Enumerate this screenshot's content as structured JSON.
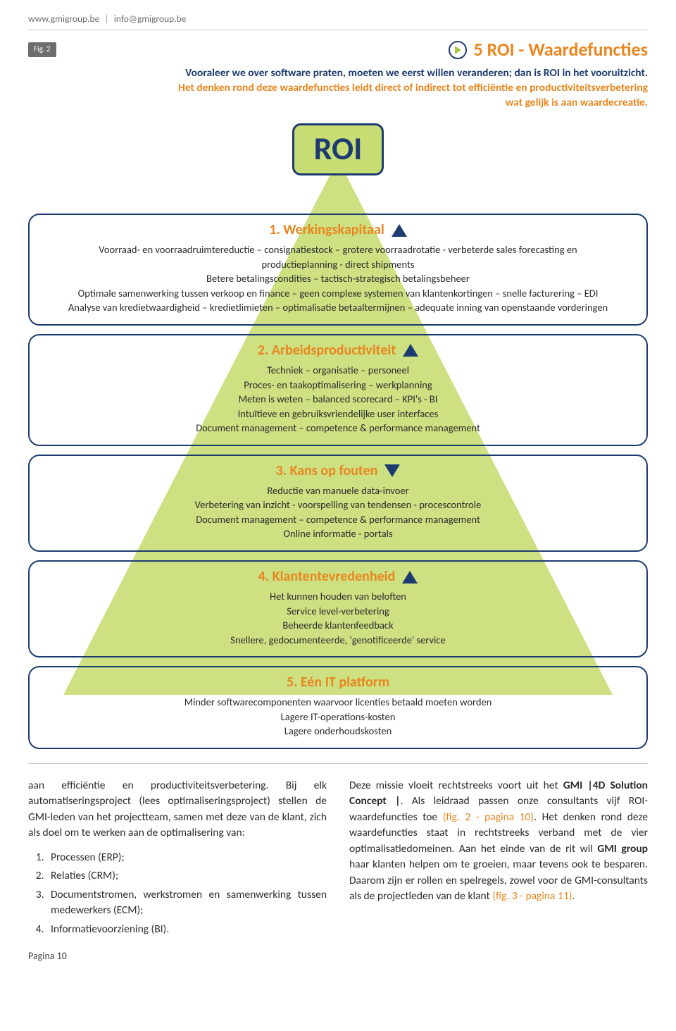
{
  "header": {
    "url": "www.gmigroup.be",
    "email": "info@gmigroup.be"
  },
  "fig_badge": "Fig. 2",
  "title": "5 ROI - Waardefuncties",
  "colors": {
    "orange": "#e8861f",
    "navy": "#1d3b70",
    "green_tri": "#c8dd74",
    "green_chev": "#a7c83f",
    "grey_text": "#6d6d6d"
  },
  "intro": {
    "line1": "Vooraleer we over software praten, moeten we eerst willen veranderen; dan is ROI in het vooruitzicht.",
    "line2": "Het denken rond deze waardefuncties leidt direct of indirect tot efficiëntie en productiviteitsverbetering",
    "line3": "wat gelijk is aan waardecreatie."
  },
  "roi_label": "ROI",
  "sections": [
    {
      "title": "1. Werkingskapitaal",
      "arrow": "up",
      "lines": [
        "Voorraad- en voorraadruimtereductie – consignatiestock – grotere voorraadrotatie -  verbeterde sales forecasting en",
        "productieplanning - direct shipments",
        "Betere betalingscondities – tactisch-strategisch betalingsbeheer",
        "Optimale samenwerking tussen verkoop en finance – geen complexe systemen van klantenkortingen – snelle facturering – EDI",
        "Analyse van kredietwaardigheid – kredietlimieten – optimalisatie betaaltermijnen – adequate inning van openstaande vorderingen"
      ]
    },
    {
      "title": "2. Arbeidsproductiviteit",
      "arrow": "up",
      "lines": [
        "Techniek – organisatie – personeel",
        "Proces- en taakoptimalisering – werkplanning",
        "Meten is weten – balanced scorecard – KPI's - BI",
        "Intuïtieve en gebruiksvriendelijke user interfaces",
        "Document management – competence & performance management"
      ]
    },
    {
      "title": "3. Kans op fouten",
      "arrow": "down",
      "lines": [
        "Reductie van manuele data-invoer",
        "Verbetering van inzicht - voorspelling van tendensen - procescontrole",
        "Document management – competence & performance management",
        "Online informatie - portals"
      ]
    },
    {
      "title": "4. Klantentevredenheid",
      "arrow": "up",
      "lines": [
        "Het kunnen houden van beloften",
        "Service level-verbetering",
        "Beheerde klantenfeedback",
        "Snellere, gedocumenteerde, 'genotificeerde' service"
      ]
    },
    {
      "title": "5. Eén IT platform",
      "arrow": "none",
      "lines": [
        "Minder softwarecomponenten waarvoor licenties betaald moeten worden",
        "Lagere IT-operations-kosten",
        "Lagere onderhoudskosten"
      ]
    }
  ],
  "left_col": {
    "para": "aan efficiëntie en productiviteitsverbetering. Bij elk automatiseringsproject (lees optimaliseringsproject) stellen de GMI-leden van het projectteam, samen met deze van de klant, zich als doel om te werken aan de optimalisering van:",
    "items": [
      "Processen (ERP);",
      "Relaties (CRM);",
      "Documentstromen, werkstromen en samenwerking tussen medewerkers (ECM);",
      "Informatievoorziening (BI)."
    ]
  },
  "right_col": {
    "pre": "Deze missie vloeit rechtstreeks voort uit het ",
    "bold1": "GMI |4D Solution Concept |",
    "mid1": ". Als leidraad passen onze consultants vijf ROI-waardefuncties toe ",
    "link1": "(fig. 2 - pagina 10)",
    "mid2": ". Het denken rond deze waardefuncties staat in rechtstreeks verband met de vier optimalisatiedomeinen. Aan het einde van de rit wil ",
    "bold2": "GMI group",
    "mid3": " haar klanten helpen om te groeien, maar tevens ook te besparen. Daarom zijn er rollen en spelregels, zowel voor de GMI-consultants als de projectleden van de klant ",
    "link2": "(fig. 3 - pagina 11)",
    "end": "."
  },
  "footer": "Pagina 10"
}
